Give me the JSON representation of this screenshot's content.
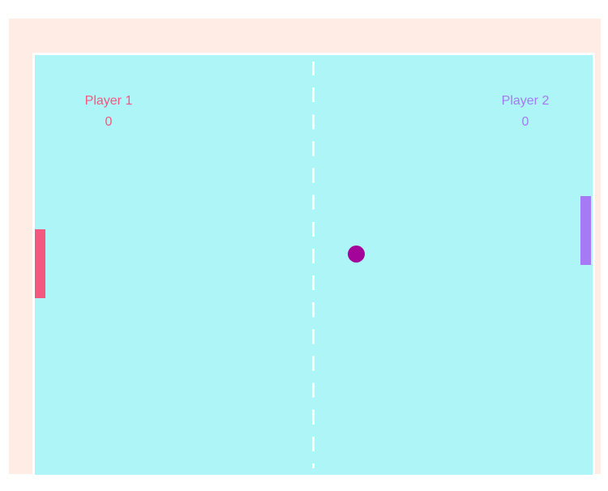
{
  "players": [
    {
      "name": "Player 1",
      "score": "0",
      "color": "#f4587f"
    },
    {
      "name": "Player 2",
      "score": "0",
      "color": "#a67af4"
    }
  ],
  "ball": {
    "color": "#a5049a"
  },
  "court": {
    "color": "#adf5f7",
    "line_color": "#ffffff"
  },
  "frame": {
    "color": "#ffece4"
  }
}
